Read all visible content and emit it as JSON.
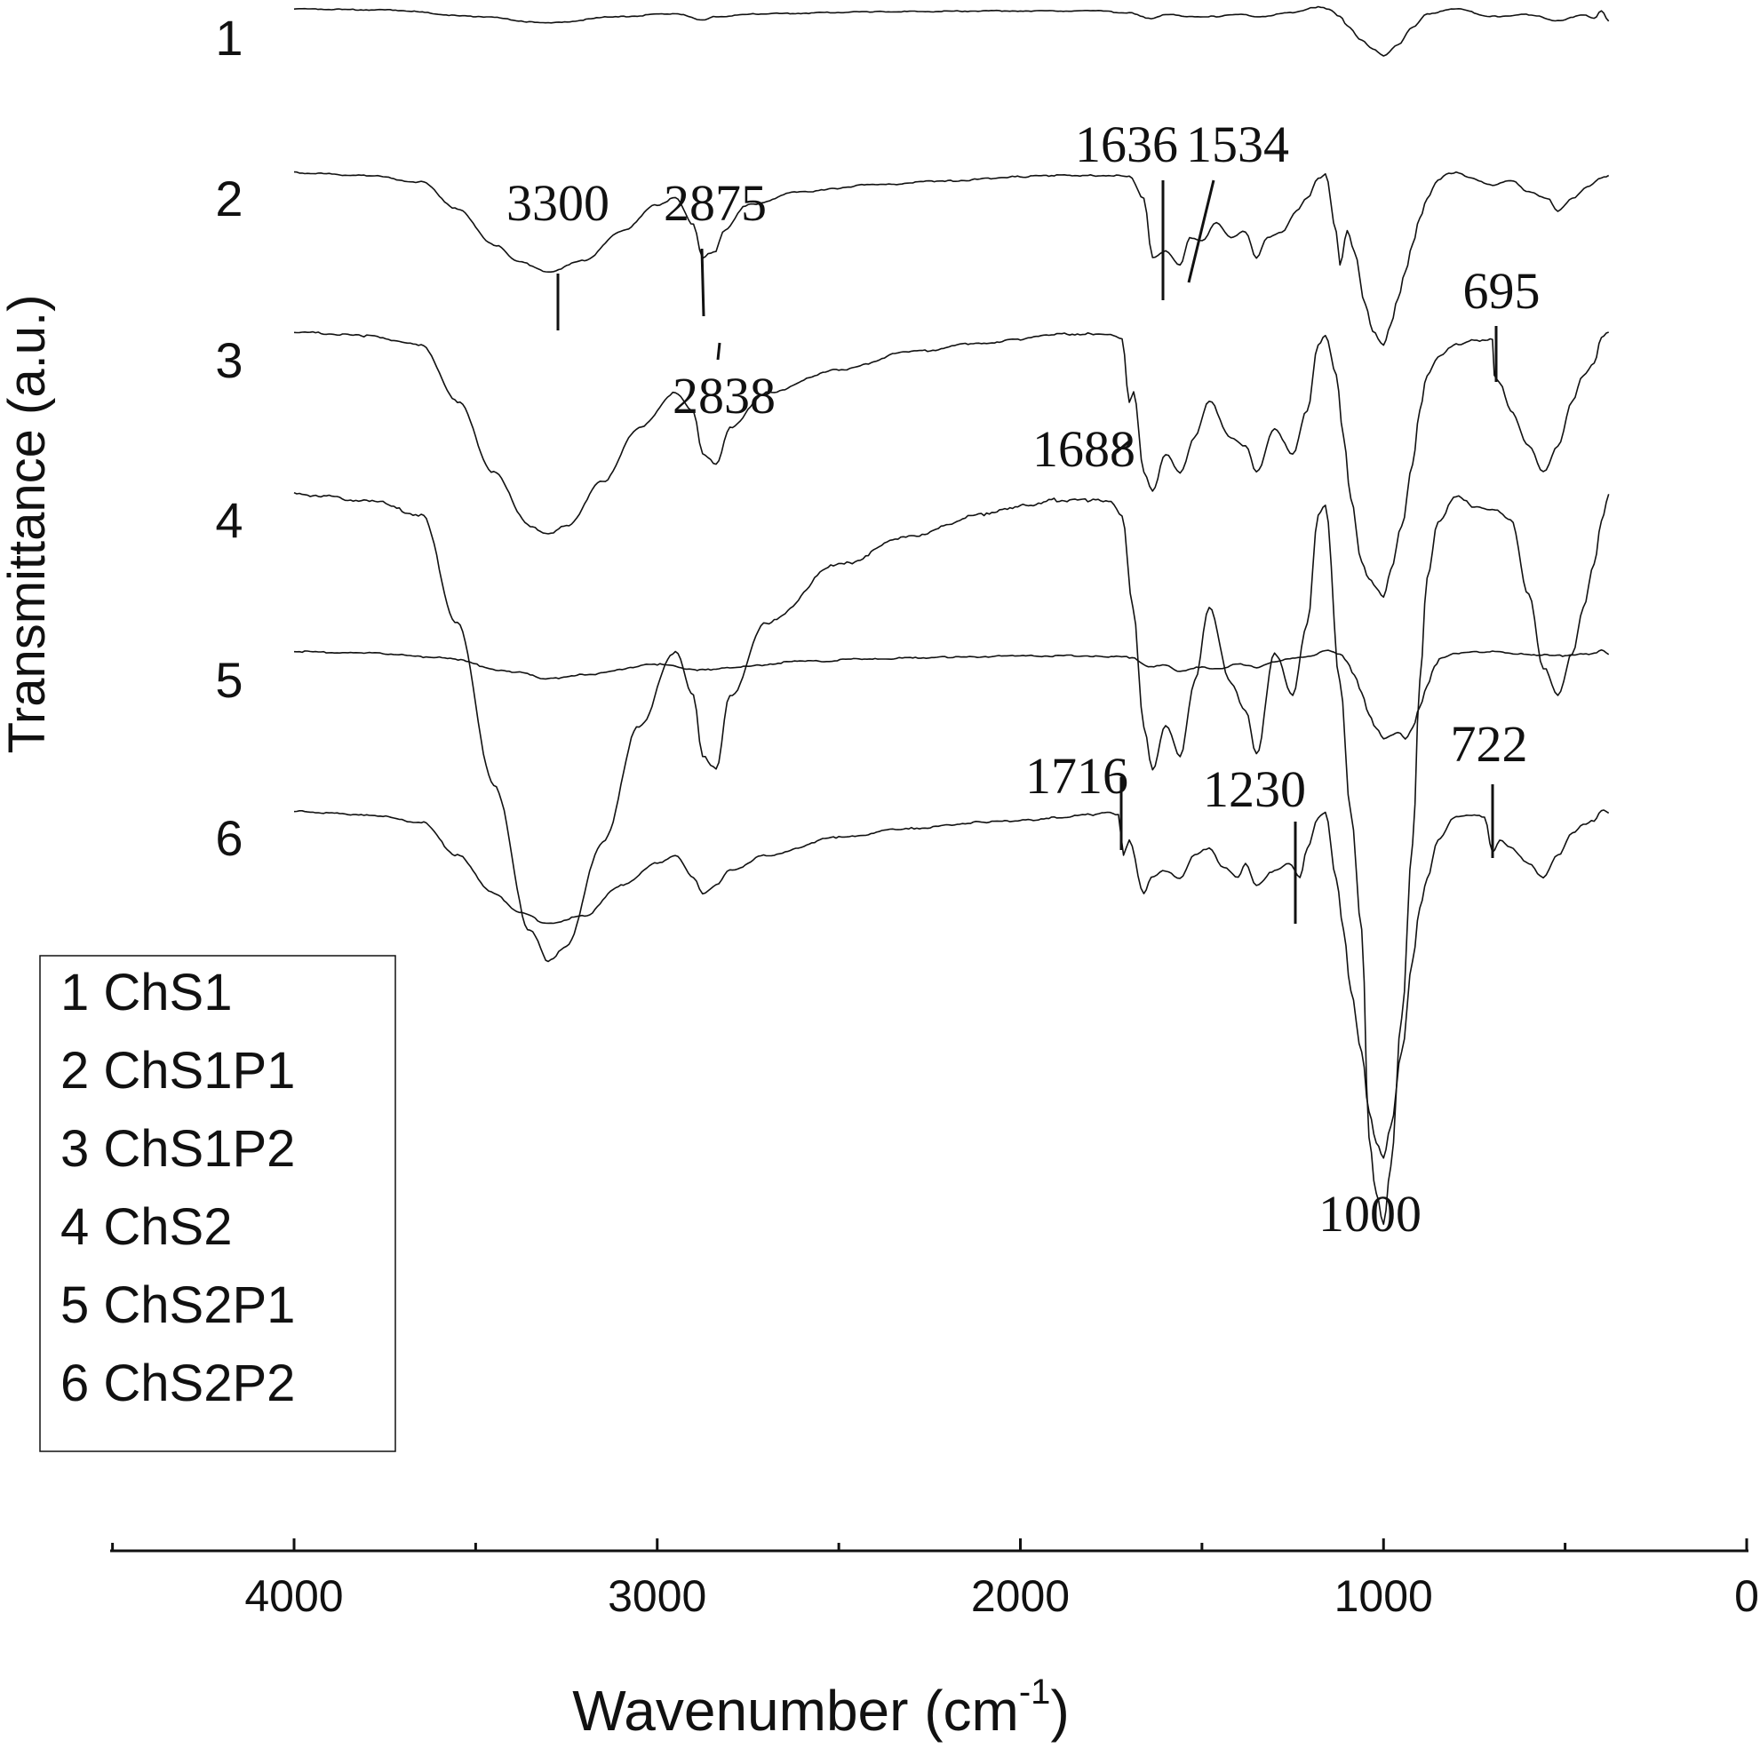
{
  "chart_data": {
    "type": "line",
    "title": "",
    "xlabel": "Wavenumber (cm",
    "xlabel_sup": "-1",
    "xlabel_close": ")",
    "ylabel": "Transmittance (a.u.)",
    "xlim": [
      4500,
      0
    ],
    "x_major_ticks": [
      4000,
      3000,
      2000,
      1000,
      0
    ],
    "x_tick_labels": [
      "4000",
      "3000",
      "2000",
      "1000",
      "0"
    ],
    "x_minor_ticks": [
      4500,
      3500,
      2500,
      1500,
      500
    ],
    "grid": false,
    "legend": {
      "location": "lower-left",
      "entries": [
        "1 ChS1",
        "2 ChS1P1",
        "3 ChS1P2",
        "4 ChS2",
        "5 ChS2P1",
        "6 ChS2P2"
      ]
    },
    "series": [
      {
        "name": "1",
        "label": "1",
        "x": [
          4000,
          3750,
          3500,
          3300,
          3100,
          2950,
          2875,
          2838,
          2700,
          2400,
          2000,
          1800,
          1700,
          1640,
          1600,
          1534,
          1460,
          1400,
          1340,
          1250,
          1180,
          1150,
          1120,
          1100,
          1060,
          1030,
          1000,
          960,
          920,
          880,
          800,
          700,
          600,
          520,
          450,
          420,
          400,
          380
        ],
        "y": [
          0.98,
          0.97,
          0.9,
          0.83,
          0.9,
          0.93,
          0.86,
          0.9,
          0.93,
          0.95,
          0.96,
          0.96,
          0.94,
          0.88,
          0.92,
          0.9,
          0.9,
          0.92,
          0.9,
          0.94,
          1.0,
          0.98,
          0.9,
          0.8,
          0.65,
          0.55,
          0.48,
          0.6,
          0.78,
          0.93,
          0.98,
          0.9,
          0.92,
          0.85,
          0.92,
          0.88,
          0.96,
          0.85
        ]
      },
      {
        "name": "2",
        "label": "2",
        "x": [
          4000,
          3800,
          3650,
          3550,
          3450,
          3380,
          3300,
          3200,
          3100,
          3000,
          2950,
          2900,
          2875,
          2860,
          2838,
          2820,
          2750,
          2600,
          2400,
          2200,
          2000,
          1900,
          1800,
          1750,
          1700,
          1660,
          1636,
          1600,
          1560,
          1534,
          1500,
          1460,
          1420,
          1380,
          1350,
          1320,
          1280,
          1240,
          1210,
          1180,
          1160,
          1130,
          1120,
          1100,
          1080,
          1050,
          1030,
          1000,
          980,
          960,
          940,
          920,
          900,
          880,
          850,
          820,
          800,
          760,
          700,
          650,
          600,
          550,
          520,
          480,
          440,
          400,
          380
        ],
        "y": [
          0.99,
          0.97,
          0.92,
          0.72,
          0.45,
          0.32,
          0.25,
          0.33,
          0.55,
          0.75,
          0.8,
          0.6,
          0.35,
          0.38,
          0.4,
          0.55,
          0.75,
          0.85,
          0.9,
          0.93,
          0.96,
          0.97,
          0.97,
          0.97,
          0.96,
          0.8,
          0.35,
          0.4,
          0.3,
          0.5,
          0.48,
          0.62,
          0.5,
          0.55,
          0.35,
          0.5,
          0.55,
          0.7,
          0.8,
          0.95,
          0.98,
          0.55,
          0.3,
          0.55,
          0.4,
          0.0,
          -0.2,
          -0.3,
          -0.15,
          0.05,
          0.25,
          0.45,
          0.65,
          0.8,
          0.93,
          0.99,
          0.99,
          0.95,
          0.9,
          0.93,
          0.85,
          0.8,
          0.7,
          0.8,
          0.88,
          0.95,
          0.97
        ]
      },
      {
        "name": "3",
        "label": "3",
        "x": [
          4000,
          3800,
          3650,
          3550,
          3450,
          3350,
          3300,
          3250,
          3150,
          3050,
          2950,
          2900,
          2875,
          2838,
          2800,
          2700,
          2500,
          2300,
          2100,
          2000,
          1900,
          1800,
          1760,
          1720,
          1700,
          1688,
          1660,
          1636,
          1600,
          1560,
          1520,
          1480,
          1420,
          1380,
          1350,
          1300,
          1250,
          1210,
          1180,
          1160,
          1130,
          1110,
          1090,
          1060,
          1040,
          1020,
          1000,
          980,
          950,
          920,
          900,
          880,
          850,
          800,
          750,
          720,
          700,
          695,
          680,
          650,
          600,
          560,
          520,
          480,
          450,
          420,
          400,
          380
        ],
        "y": [
          0.99,
          0.97,
          0.92,
          0.6,
          0.2,
          -0.1,
          -0.15,
          -0.1,
          0.15,
          0.45,
          0.65,
          0.55,
          0.3,
          0.25,
          0.45,
          0.65,
          0.78,
          0.88,
          0.93,
          0.95,
          0.98,
          0.98,
          0.98,
          0.95,
          0.6,
          0.65,
          0.2,
          0.1,
          0.3,
          0.2,
          0.4,
          0.6,
          0.4,
          0.35,
          0.2,
          0.45,
          0.3,
          0.55,
          0.92,
          0.97,
          0.75,
          0.4,
          0.05,
          -0.3,
          -0.4,
          -0.45,
          -0.5,
          -0.35,
          -0.1,
          0.25,
          0.55,
          0.75,
          0.85,
          0.92,
          0.95,
          0.94,
          0.95,
          0.75,
          0.7,
          0.55,
          0.35,
          0.2,
          0.35,
          0.6,
          0.75,
          0.82,
          0.96,
          0.99
        ]
      },
      {
        "name": "4",
        "label": "4",
        "x": [
          4000,
          3800,
          3650,
          3550,
          3450,
          3350,
          3300,
          3250,
          3150,
          3050,
          2950,
          2900,
          2875,
          2838,
          2800,
          2700,
          2500,
          2300,
          2100,
          2000,
          1900,
          1800,
          1750,
          1720,
          1690,
          1660,
          1636,
          1600,
          1560,
          1520,
          1480,
          1420,
          1380,
          1350,
          1300,
          1250,
          1210,
          1180,
          1160,
          1120,
          1090,
          1060,
          1040,
          1020,
          1000,
          980,
          950,
          920,
          900,
          880,
          850,
          800,
          750,
          700,
          650,
          600,
          560,
          520,
          480,
          450,
          420,
          400,
          380
        ],
        "y": [
          0.99,
          0.97,
          0.92,
          0.55,
          0.0,
          -0.5,
          -0.6,
          -0.55,
          -0.2,
          0.2,
          0.45,
          0.3,
          0.1,
          0.05,
          0.3,
          0.55,
          0.75,
          0.85,
          0.92,
          0.95,
          0.97,
          0.97,
          0.96,
          0.92,
          0.6,
          0.2,
          0.05,
          0.2,
          0.1,
          0.35,
          0.6,
          0.35,
          0.25,
          0.1,
          0.45,
          0.3,
          0.55,
          0.92,
          0.95,
          0.35,
          -0.1,
          -0.5,
          -1.2,
          -1.4,
          -1.5,
          -1.3,
          -0.8,
          -0.2,
          0.35,
          0.7,
          0.9,
          0.98,
          0.95,
          0.94,
          0.9,
          0.65,
          0.4,
          0.3,
          0.45,
          0.6,
          0.75,
          0.9,
          0.99
        ]
      },
      {
        "name": "5",
        "label": "5",
        "x": [
          4000,
          3800,
          3600,
          3400,
          3300,
          3200,
          3000,
          2875,
          2800,
          2600,
          2400,
          2200,
          2000,
          1800,
          1700,
          1640,
          1600,
          1560,
          1500,
          1450,
          1400,
          1350,
          1300,
          1250,
          1200,
          1160,
          1120,
          1100,
          1080,
          1060,
          1040,
          1020,
          1000,
          980,
          960,
          940,
          920,
          900,
          880,
          860,
          840,
          800,
          700,
          600,
          500,
          450,
          420,
          400,
          380
        ],
        "y": [
          0.99,
          0.98,
          0.95,
          0.85,
          0.8,
          0.83,
          0.9,
          0.86,
          0.88,
          0.92,
          0.94,
          0.95,
          0.96,
          0.96,
          0.95,
          0.88,
          0.9,
          0.85,
          0.88,
          0.87,
          0.9,
          0.88,
          0.92,
          0.94,
          0.96,
          1.0,
          0.97,
          0.92,
          0.82,
          0.7,
          0.55,
          0.45,
          0.38,
          0.4,
          0.42,
          0.38,
          0.45,
          0.6,
          0.75,
          0.88,
          0.95,
          0.98,
          0.99,
          0.97,
          0.96,
          0.97,
          0.98,
          1.0,
          0.97
        ]
      },
      {
        "name": "6",
        "label": "6",
        "x": [
          4000,
          3800,
          3650,
          3550,
          3450,
          3380,
          3300,
          3200,
          3100,
          3000,
          2950,
          2900,
          2875,
          2838,
          2800,
          2700,
          2500,
          2300,
          2100,
          2000,
          1900,
          1800,
          1760,
          1730,
          1716,
          1700,
          1660,
          1640,
          1600,
          1560,
          1520,
          1480,
          1440,
          1400,
          1380,
          1350,
          1300,
          1260,
          1230,
          1210,
          1180,
          1160,
          1130,
          1110,
          1090,
          1060,
          1040,
          1020,
          1000,
          980,
          950,
          920,
          900,
          880,
          850,
          800,
          750,
          722,
          700,
          680,
          650,
          600,
          560,
          520,
          480,
          450,
          420,
          400,
          380
        ],
        "y": [
          0.99,
          0.97,
          0.92,
          0.7,
          0.45,
          0.32,
          0.25,
          0.3,
          0.5,
          0.65,
          0.7,
          0.55,
          0.45,
          0.5,
          0.6,
          0.7,
          0.82,
          0.88,
          0.92,
          0.93,
          0.95,
          0.97,
          0.98,
          0.97,
          0.7,
          0.8,
          0.45,
          0.55,
          0.6,
          0.55,
          0.7,
          0.75,
          0.62,
          0.55,
          0.65,
          0.5,
          0.6,
          0.65,
          0.55,
          0.75,
          0.95,
          0.98,
          0.55,
          0.2,
          -0.2,
          -0.6,
          -1.0,
          -1.2,
          -1.3,
          -1.1,
          -0.6,
          0.0,
          0.35,
          0.55,
          0.8,
          0.96,
          0.97,
          0.95,
          0.72,
          0.8,
          0.75,
          0.65,
          0.55,
          0.7,
          0.85,
          0.9,
          0.93,
          1.0,
          0.98
        ]
      }
    ],
    "annotations": [
      {
        "text": "3300",
        "x": 3300,
        "series": "2",
        "mark": "vertical"
      },
      {
        "text": "2875",
        "x": 2875,
        "series": "2",
        "mark": "vertical"
      },
      {
        "text": "2838",
        "x": 2838,
        "series": "2",
        "mark": "vertical-below"
      },
      {
        "text": "1636",
        "x": 1636,
        "series": "2",
        "mark": "vertical"
      },
      {
        "text": "1534",
        "x": 1534,
        "series": "2",
        "mark": "slanted"
      },
      {
        "text": "1688",
        "x": 1688,
        "series": "3",
        "mark": "slanted-left"
      },
      {
        "text": "695",
        "x": 695,
        "series": "3",
        "mark": "vertical"
      },
      {
        "text": "1716",
        "x": 1716,
        "series": "6",
        "mark": "vertical"
      },
      {
        "text": "1230",
        "x": 1230,
        "series": "6",
        "mark": "vertical"
      },
      {
        "text": "722",
        "x": 722,
        "series": "6",
        "mark": "vertical"
      },
      {
        "text": "1000",
        "x": 1000,
        "series": "4",
        "mark": "label-below"
      }
    ]
  }
}
